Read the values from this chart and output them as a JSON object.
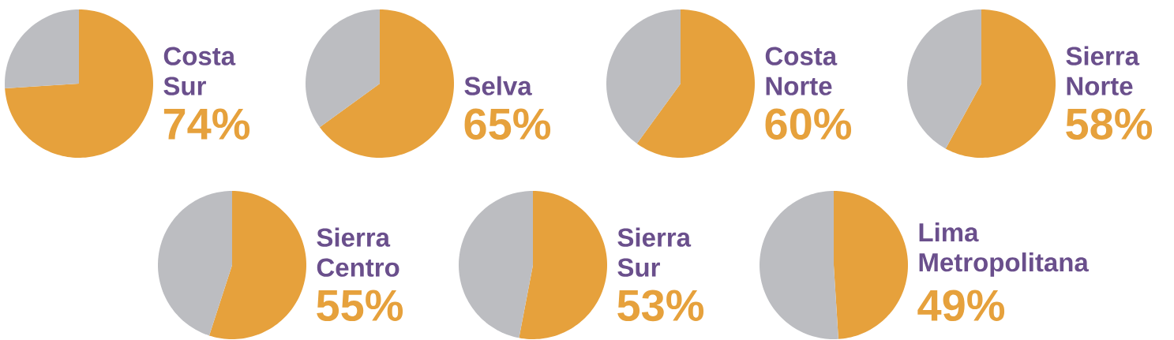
{
  "chart_data": [
    {
      "type": "pie",
      "title": "Costa Sur",
      "categories": [
        null,
        null
      ],
      "values": [
        74,
        26
      ],
      "colors": [
        "#e6a13c",
        "#bcbdc1"
      ],
      "value_labels": [
        "74%",
        null
      ]
    },
    {
      "type": "pie",
      "title": "Selva",
      "categories": [
        null,
        null
      ],
      "values": [
        65,
        35
      ],
      "colors": [
        "#e6a13c",
        "#bcbdc1"
      ],
      "value_labels": [
        "65%",
        null
      ]
    },
    {
      "type": "pie",
      "title": "Costa Norte",
      "categories": [
        null,
        null
      ],
      "values": [
        60,
        40
      ],
      "colors": [
        "#e6a13c",
        "#bcbdc1"
      ],
      "value_labels": [
        "60%",
        null
      ]
    },
    {
      "type": "pie",
      "title": "Sierra Norte",
      "categories": [
        null,
        null
      ],
      "values": [
        58,
        42
      ],
      "colors": [
        "#e6a13c",
        "#bcbdc1"
      ],
      "value_labels": [
        "58%",
        null
      ]
    },
    {
      "type": "pie",
      "title": "Sierra Centro",
      "categories": [
        null,
        null
      ],
      "values": [
        55,
        45
      ],
      "colors": [
        "#e6a13c",
        "#bcbdc1"
      ],
      "value_labels": [
        "55%",
        null
      ]
    },
    {
      "type": "pie",
      "title": "Sierra Sur",
      "categories": [
        null,
        null
      ],
      "values": [
        53,
        47
      ],
      "colors": [
        "#e6a13c",
        "#bcbdc1"
      ],
      "value_labels": [
        "53%",
        null
      ]
    },
    {
      "type": "pie",
      "title": "Lima Metropolitana",
      "categories": [
        null,
        null
      ],
      "values": [
        49,
        51
      ],
      "colors": [
        "#e6a13c",
        "#bcbdc1"
      ],
      "value_labels": [
        "49%",
        null
      ]
    }
  ]
}
